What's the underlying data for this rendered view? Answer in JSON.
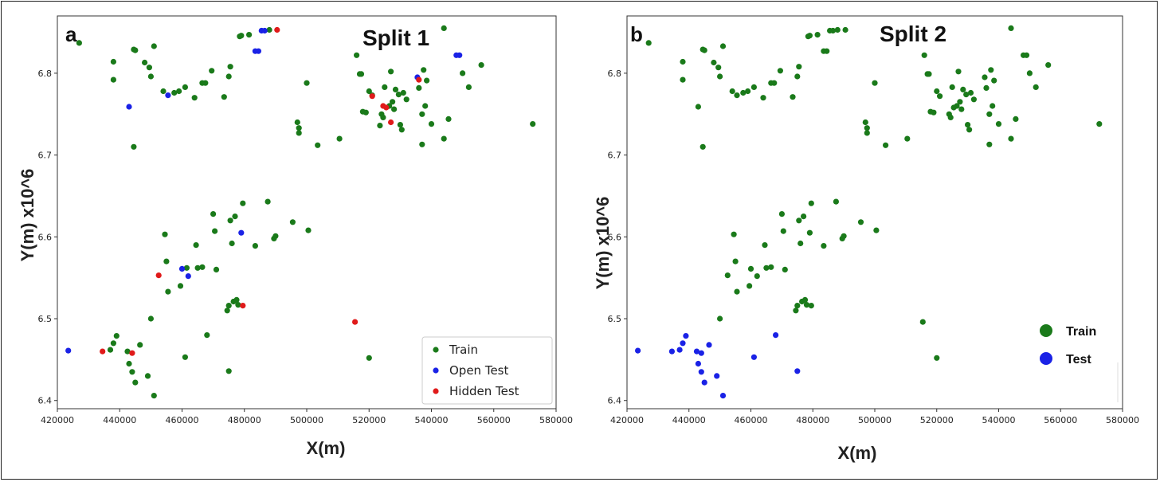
{
  "chart_data": [
    {
      "type": "scatter",
      "panel_label": "a",
      "title": "Split 1",
      "xlabel": "X(m)",
      "ylabel": "Y(m) x10^6",
      "xlim": [
        420000,
        580000
      ],
      "ylim": [
        6.39,
        6.87
      ],
      "xticks": [
        "420000",
        "440000",
        "460000",
        "480000",
        "500000",
        "520000",
        "540000",
        "560000",
        "580000"
      ],
      "yticks": [
        "6.4",
        "6.5",
        "6.6",
        "6.7",
        "6.8"
      ],
      "grid": false,
      "legend": "bottom-right",
      "series": [
        {
          "name": "Train",
          "color": "#1a7a1a",
          "points": [
            [
              427000,
              6.837
            ],
            [
              438000,
              6.814
            ],
            [
              438000,
              6.792
            ],
            [
              444500,
              6.829
            ],
            [
              445000,
              6.828
            ],
            [
              448000,
              6.813
            ],
            [
              449500,
              6.807
            ],
            [
              450000,
              6.796
            ],
            [
              451000,
              6.833
            ],
            [
              454000,
              6.778
            ],
            [
              457500,
              6.776
            ],
            [
              459000,
              6.778
            ],
            [
              461000,
              6.783
            ],
            [
              464000,
              6.77
            ],
            [
              466500,
              6.788
            ],
            [
              467500,
              6.788
            ],
            [
              469500,
              6.803
            ],
            [
              473500,
              6.771
            ],
            [
              475000,
              6.796
            ],
            [
              475500,
              6.808
            ],
            [
              478500,
              6.845
            ],
            [
              479000,
              6.846
            ],
            [
              481500,
              6.847
            ],
            [
              488000,
              6.853
            ],
            [
              444500,
              6.71
            ],
            [
              497000,
              6.74
            ],
            [
              497500,
              6.733
            ],
            [
              497500,
              6.727
            ],
            [
              500000,
              6.788
            ],
            [
              503500,
              6.712
            ],
            [
              510500,
              6.72
            ],
            [
              516000,
              6.822
            ],
            [
              517000,
              6.799
            ],
            [
              517500,
              6.799
            ],
            [
              518000,
              6.753
            ],
            [
              519000,
              6.752
            ],
            [
              520000,
              6.778
            ],
            [
              521000,
              6.773
            ],
            [
              524000,
              6.75
            ],
            [
              524500,
              6.746
            ],
            [
              525000,
              6.783
            ],
            [
              526500,
              6.76
            ],
            [
              527000,
              6.802
            ],
            [
              527500,
              6.765
            ],
            [
              528000,
              6.756
            ],
            [
              528500,
              6.78
            ],
            [
              529500,
              6.774
            ],
            [
              530000,
              6.737
            ],
            [
              530500,
              6.731
            ],
            [
              531000,
              6.776
            ],
            [
              532000,
              6.768
            ],
            [
              536000,
              6.782
            ],
            [
              537000,
              6.75
            ],
            [
              537000,
              6.713
            ],
            [
              537500,
              6.804
            ],
            [
              538000,
              6.76
            ],
            [
              538500,
              6.791
            ],
            [
              540000,
              6.738
            ],
            [
              544000,
              6.72
            ],
            [
              545500,
              6.744
            ],
            [
              550000,
              6.8
            ],
            [
              552000,
              6.783
            ],
            [
              556000,
              6.81
            ],
            [
              572500,
              6.738
            ],
            [
              544000,
              6.855
            ],
            [
              523500,
              6.736
            ],
            [
              454500,
              6.603
            ],
            [
              455000,
              6.57
            ],
            [
              455500,
              6.533
            ],
            [
              459500,
              6.54
            ],
            [
              461500,
              6.562
            ],
            [
              464500,
              6.59
            ],
            [
              465000,
              6.562
            ],
            [
              466500,
              6.563
            ],
            [
              468000,
              6.48
            ],
            [
              470000,
              6.628
            ],
            [
              470500,
              6.607
            ],
            [
              471000,
              6.56
            ],
            [
              474500,
              6.51
            ],
            [
              475000,
              6.516
            ],
            [
              475500,
              6.62
            ],
            [
              476000,
              6.592
            ],
            [
              476500,
              6.521
            ],
            [
              477000,
              6.625
            ],
            [
              477500,
              6.523
            ],
            [
              478000,
              6.517
            ],
            [
              479500,
              6.641
            ],
            [
              483500,
              6.589
            ],
            [
              487500,
              6.643
            ],
            [
              489500,
              6.598
            ],
            [
              490000,
              6.601
            ],
            [
              495500,
              6.618
            ],
            [
              500500,
              6.608
            ],
            [
              475000,
              6.436
            ],
            [
              520000,
              6.452
            ],
            [
              437000,
              6.462
            ],
            [
              438000,
              6.47
            ],
            [
              439000,
              6.479
            ],
            [
              443000,
              6.445
            ],
            [
              444000,
              6.435
            ],
            [
              445000,
              6.422
            ],
            [
              446500,
              6.468
            ],
            [
              449000,
              6.43
            ],
            [
              450000,
              6.5
            ],
            [
              451000,
              6.406
            ],
            [
              461000,
              6.453
            ],
            [
              442500,
              6.46
            ]
          ]
        },
        {
          "name": "Open Test",
          "color": "#1a22e6",
          "points": [
            [
              423500,
              6.461
            ],
            [
              443000,
              6.759
            ],
            [
              455500,
              6.773
            ],
            [
              460000,
              6.561
            ],
            [
              462000,
              6.552
            ],
            [
              479000,
              6.605
            ],
            [
              483500,
              6.827
            ],
            [
              484500,
              6.827
            ],
            [
              485500,
              6.852
            ],
            [
              486500,
              6.852
            ],
            [
              535500,
              6.795
            ],
            [
              548000,
              6.822
            ],
            [
              549000,
              6.822
            ]
          ]
        },
        {
          "name": "Hidden Test",
          "color": "#e01a1a",
          "points": [
            [
              434500,
              6.46
            ],
            [
              444000,
              6.458
            ],
            [
              452500,
              6.553
            ],
            [
              479500,
              6.516
            ],
            [
              490500,
              6.853
            ],
            [
              515500,
              6.496
            ],
            [
              521000,
              6.772
            ],
            [
              524500,
              6.76
            ],
            [
              525500,
              6.758
            ],
            [
              527000,
              6.74
            ],
            [
              536000,
              6.792
            ]
          ]
        }
      ]
    },
    {
      "type": "scatter",
      "panel_label": "b",
      "title": "Split 2",
      "xlabel": "X(m)",
      "ylabel": "Y(m) x10^6",
      "xlim": [
        420000,
        580000
      ],
      "ylim": [
        6.39,
        6.87
      ],
      "xticks": [
        "420000",
        "440000",
        "460000",
        "480000",
        "500000",
        "520000",
        "540000",
        "560000",
        "580000"
      ],
      "yticks": [
        "6.4",
        "6.5",
        "6.6",
        "6.7",
        "6.8"
      ],
      "grid": false,
      "legend": "bottom-right",
      "series": [
        {
          "name": "Train",
          "color": "#1a7a1a",
          "points": [
            [
              427000,
              6.837
            ],
            [
              438000,
              6.814
            ],
            [
              438000,
              6.792
            ],
            [
              444500,
              6.829
            ],
            [
              445000,
              6.828
            ],
            [
              448000,
              6.813
            ],
            [
              449500,
              6.807
            ],
            [
              450000,
              6.796
            ],
            [
              451000,
              6.833
            ],
            [
              454000,
              6.778
            ],
            [
              455500,
              6.773
            ],
            [
              457500,
              6.776
            ],
            [
              459000,
              6.778
            ],
            [
              461000,
              6.783
            ],
            [
              464000,
              6.77
            ],
            [
              466500,
              6.788
            ],
            [
              467500,
              6.788
            ],
            [
              469500,
              6.803
            ],
            [
              473500,
              6.771
            ],
            [
              475000,
              6.796
            ],
            [
              475500,
              6.808
            ],
            [
              478500,
              6.845
            ],
            [
              479000,
              6.846
            ],
            [
              481500,
              6.847
            ],
            [
              483500,
              6.827
            ],
            [
              484500,
              6.827
            ],
            [
              485500,
              6.852
            ],
            [
              486500,
              6.852
            ],
            [
              488000,
              6.853
            ],
            [
              490500,
              6.853
            ],
            [
              443000,
              6.759
            ],
            [
              444500,
              6.71
            ],
            [
              497000,
              6.74
            ],
            [
              497500,
              6.733
            ],
            [
              497500,
              6.727
            ],
            [
              500000,
              6.788
            ],
            [
              503500,
              6.712
            ],
            [
              510500,
              6.72
            ],
            [
              516000,
              6.822
            ],
            [
              517000,
              6.799
            ],
            [
              517500,
              6.799
            ],
            [
              518000,
              6.753
            ],
            [
              519000,
              6.752
            ],
            [
              520000,
              6.778
            ],
            [
              521000,
              6.772
            ],
            [
              524000,
              6.75
            ],
            [
              524500,
              6.746
            ],
            [
              525000,
              6.783
            ],
            [
              525500,
              6.758
            ],
            [
              526500,
              6.76
            ],
            [
              527000,
              6.802
            ],
            [
              527500,
              6.765
            ],
            [
              528000,
              6.756
            ],
            [
              528500,
              6.78
            ],
            [
              529500,
              6.774
            ],
            [
              530000,
              6.737
            ],
            [
              530500,
              6.731
            ],
            [
              531000,
              6.776
            ],
            [
              532000,
              6.768
            ],
            [
              535500,
              6.795
            ],
            [
              536000,
              6.782
            ],
            [
              537000,
              6.75
            ],
            [
              537000,
              6.713
            ],
            [
              537500,
              6.804
            ],
            [
              538000,
              6.76
            ],
            [
              538500,
              6.791
            ],
            [
              540000,
              6.738
            ],
            [
              544000,
              6.72
            ],
            [
              545500,
              6.744
            ],
            [
              548000,
              6.822
            ],
            [
              549000,
              6.822
            ],
            [
              550000,
              6.8
            ],
            [
              552000,
              6.783
            ],
            [
              556000,
              6.81
            ],
            [
              572500,
              6.738
            ],
            [
              544000,
              6.855
            ],
            [
              452500,
              6.553
            ],
            [
              454500,
              6.603
            ],
            [
              455000,
              6.57
            ],
            [
              455500,
              6.533
            ],
            [
              459500,
              6.54
            ],
            [
              460000,
              6.561
            ],
            [
              462000,
              6.552
            ],
            [
              464500,
              6.59
            ],
            [
              465000,
              6.562
            ],
            [
              466500,
              6.563
            ],
            [
              470000,
              6.628
            ],
            [
              470500,
              6.607
            ],
            [
              471000,
              6.56
            ],
            [
              474500,
              6.51
            ],
            [
              475000,
              6.516
            ],
            [
              475500,
              6.62
            ],
            [
              476000,
              6.592
            ],
            [
              476500,
              6.521
            ],
            [
              477000,
              6.625
            ],
            [
              477500,
              6.523
            ],
            [
              478000,
              6.517
            ],
            [
              479000,
              6.605
            ],
            [
              479500,
              6.516
            ],
            [
              479500,
              6.641
            ],
            [
              483500,
              6.589
            ],
            [
              487500,
              6.643
            ],
            [
              489500,
              6.598
            ],
            [
              490000,
              6.601
            ],
            [
              495500,
              6.618
            ],
            [
              500500,
              6.608
            ],
            [
              450000,
              6.5
            ],
            [
              515500,
              6.496
            ],
            [
              520000,
              6.452
            ]
          ]
        },
        {
          "name": "Test",
          "color": "#1a22e6",
          "points": [
            [
              423500,
              6.461
            ],
            [
              434500,
              6.46
            ],
            [
              437000,
              6.462
            ],
            [
              438000,
              6.47
            ],
            [
              439000,
              6.479
            ],
            [
              442500,
              6.46
            ],
            [
              443000,
              6.445
            ],
            [
              444000,
              6.458
            ],
            [
              444000,
              6.435
            ],
            [
              445000,
              6.422
            ],
            [
              446500,
              6.468
            ],
            [
              449000,
              6.43
            ],
            [
              451000,
              6.406
            ],
            [
              461000,
              6.453
            ],
            [
              468000,
              6.48
            ],
            [
              475000,
              6.436
            ]
          ]
        }
      ]
    }
  ]
}
